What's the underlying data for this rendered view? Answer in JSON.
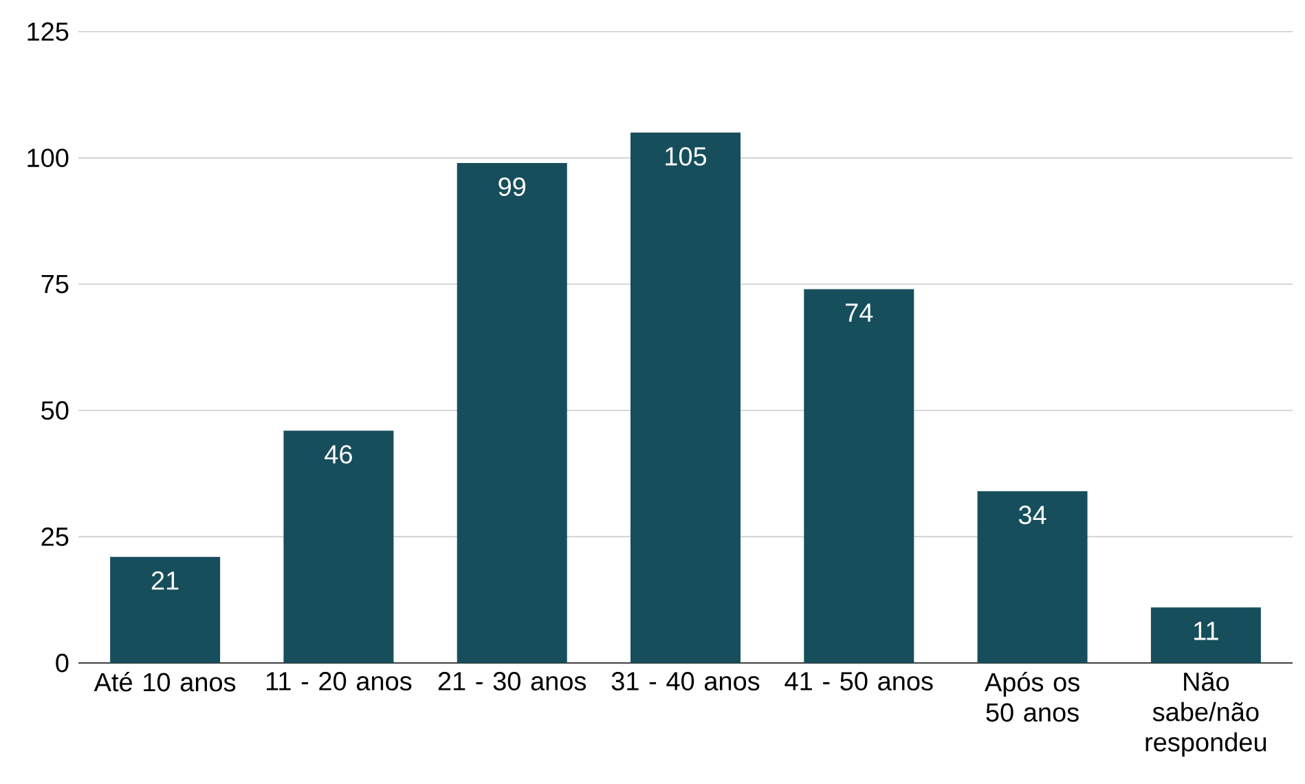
{
  "chart_data": {
    "type": "bar",
    "categories": [
      "Até 10 anos",
      "11 - 20 anos",
      "21 - 30 anos",
      "31 - 40 anos",
      "41 - 50 anos",
      "Após os 50 anos",
      "Não sabe/não respondeu"
    ],
    "values": [
      21,
      46,
      99,
      105,
      74,
      34,
      11
    ],
    "color": "#174e5c",
    "ylim": [
      0,
      125
    ],
    "yticks": [
      0,
      25,
      50,
      75,
      100,
      125
    ],
    "grid": "y",
    "data_labels": true
  }
}
